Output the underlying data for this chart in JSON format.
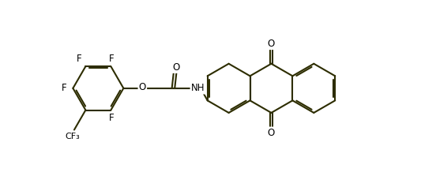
{
  "bg_color": "#ffffff",
  "bond_color": "#2d2d00",
  "line_color": "#3a3000",
  "atom_color": "#000000",
  "line_width": 1.5,
  "font_size": 8.5,
  "figsize": [
    5.33,
    2.37
  ],
  "dpi": 100,
  "xlim": [
    -5.8,
    6.2
  ],
  "ylim": [
    -2.0,
    2.0
  ]
}
